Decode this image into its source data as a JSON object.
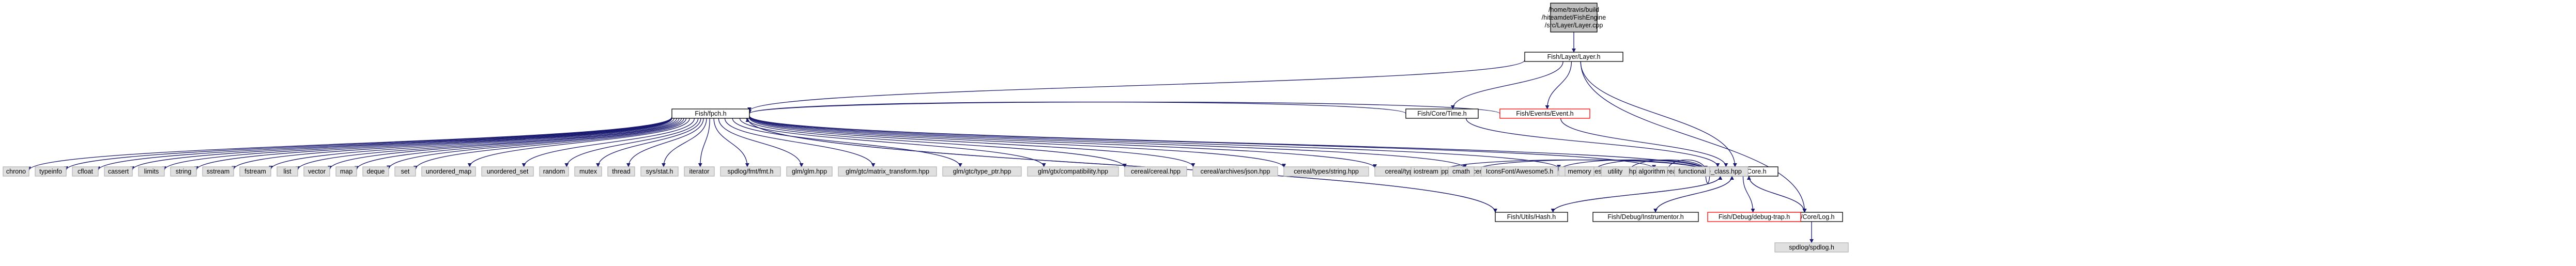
{
  "title": "",
  "colors": {
    "root_fill": "#bfbfbf",
    "node_fill": "#ffffff",
    "external_fill": "#e0e0e0",
    "external_stroke": "#b5b5b5",
    "documented_stroke": "#000000",
    "undocumented_stroke": "#ff0000",
    "edge": "#191970",
    "text": "#000000"
  },
  "nodes": [
    {
      "id": "root",
      "lines": [
        "/home/travis/build",
        "/hiteamdet/FishEngine",
        "/src/Layer/Layer.cpp"
      ],
      "kind": "root"
    },
    {
      "id": "layer_h",
      "lines": [
        "Fish/Layer/Layer.h"
      ],
      "kind": "documented"
    },
    {
      "id": "fishpch",
      "lines": [
        "Fish/fpch.h"
      ],
      "kind": "documented"
    },
    {
      "id": "time_h",
      "lines": [
        "Fish/Core/Time.h"
      ],
      "kind": "documented"
    },
    {
      "id": "event_h",
      "lines": [
        "Fish/Events/Event.h"
      ],
      "kind": "undocumented"
    },
    {
      "id": "core_h",
      "lines": [
        "Fish/Core/Core.h"
      ],
      "kind": "documented"
    },
    {
      "id": "log_h",
      "lines": [
        "Fish/Core/Log.h"
      ],
      "kind": "documented"
    },
    {
      "id": "hash_h",
      "lines": [
        "Fish/Utils/Hash.h"
      ],
      "kind": "documented"
    },
    {
      "id": "instr_h",
      "lines": [
        "Fish/Debug/Instrumentor.h"
      ],
      "kind": "documented"
    },
    {
      "id": "dbgtrap_h",
      "lines": [
        "Fish/Debug/debug-trap.h"
      ],
      "kind": "undocumented"
    },
    {
      "id": "spdlog_h",
      "lines": [
        "spdlog/spdlog.h"
      ],
      "kind": "external"
    },
    {
      "id": "e_chrono",
      "lines": [
        "chrono"
      ],
      "kind": "external"
    },
    {
      "id": "e_typeinfo",
      "lines": [
        "typeinfo"
      ],
      "kind": "external"
    },
    {
      "id": "e_cfloat",
      "lines": [
        "cfloat"
      ],
      "kind": "external"
    },
    {
      "id": "e_cassert",
      "lines": [
        "cassert"
      ],
      "kind": "external"
    },
    {
      "id": "e_limits",
      "lines": [
        "limits"
      ],
      "kind": "external"
    },
    {
      "id": "e_string",
      "lines": [
        "string"
      ],
      "kind": "external"
    },
    {
      "id": "e_sstream",
      "lines": [
        "sstream"
      ],
      "kind": "external"
    },
    {
      "id": "e_fstream",
      "lines": [
        "fstream"
      ],
      "kind": "external"
    },
    {
      "id": "e_list",
      "lines": [
        "list"
      ],
      "kind": "external"
    },
    {
      "id": "e_vector",
      "lines": [
        "vector"
      ],
      "kind": "external"
    },
    {
      "id": "e_map",
      "lines": [
        "map"
      ],
      "kind": "external"
    },
    {
      "id": "e_deque",
      "lines": [
        "deque"
      ],
      "kind": "external"
    },
    {
      "id": "e_set",
      "lines": [
        "set"
      ],
      "kind": "external"
    },
    {
      "id": "e_umap",
      "lines": [
        "unordered_map"
      ],
      "kind": "external"
    },
    {
      "id": "e_uset",
      "lines": [
        "unordered_set"
      ],
      "kind": "external"
    },
    {
      "id": "e_random",
      "lines": [
        "random"
      ],
      "kind": "external"
    },
    {
      "id": "e_mutex",
      "lines": [
        "mutex"
      ],
      "kind": "external"
    },
    {
      "id": "e_thread",
      "lines": [
        "thread"
      ],
      "kind": "external"
    },
    {
      "id": "e_sysstat",
      "lines": [
        "sys/stat.h"
      ],
      "kind": "external"
    },
    {
      "id": "e_iterator",
      "lines": [
        "iterator"
      ],
      "kind": "external"
    },
    {
      "id": "e_fmt",
      "lines": [
        "spdlog/fmt/fmt.h"
      ],
      "kind": "external"
    },
    {
      "id": "e_glm",
      "lines": [
        "glm/glm.hpp"
      ],
      "kind": "external"
    },
    {
      "id": "e_glm_mt",
      "lines": [
        "glm/gtc/matrix_transform.hpp"
      ],
      "kind": "external"
    },
    {
      "id": "e_glm_tp",
      "lines": [
        "glm/gtc/type_ptr.hpp"
      ],
      "kind": "external"
    },
    {
      "id": "e_glm_cp",
      "lines": [
        "glm/gtx/compatibility.hpp"
      ],
      "kind": "external"
    },
    {
      "id": "e_cer",
      "lines": [
        "cereal/cereal.hpp"
      ],
      "kind": "external"
    },
    {
      "id": "e_cer_json",
      "lines": [
        "cereal/archives/json.hpp"
      ],
      "kind": "external"
    },
    {
      "id": "e_cer_str",
      "lines": [
        "cereal/types/string.hpp"
      ],
      "kind": "external"
    },
    {
      "id": "e_cer_util",
      "lines": [
        "cereal/types/utility.hpp"
      ],
      "kind": "external"
    },
    {
      "id": "e_cer_mem",
      "lines": [
        "cereal/types/memory.hpp"
      ],
      "kind": "external"
    },
    {
      "id": "e_cer_cplx",
      "lines": [
        "cereal/types/complex.hpp"
      ],
      "kind": "external"
    },
    {
      "id": "e_cer_base",
      "lines": [
        "cereal/types/base_class.hpp"
      ],
      "kind": "external"
    },
    {
      "id": "e_iostream",
      "lines": [
        "iostream"
      ],
      "kind": "external"
    },
    {
      "id": "e_cmath",
      "lines": [
        "cmath"
      ],
      "kind": "external"
    },
    {
      "id": "e_icons",
      "lines": [
        "IconsFont/Awesome5.h"
      ],
      "kind": "external"
    },
    {
      "id": "e_memory",
      "lines": [
        "memory"
      ],
      "kind": "external"
    },
    {
      "id": "e_utility",
      "lines": [
        "utility"
      ],
      "kind": "external"
    },
    {
      "id": "e_algorithm",
      "lines": [
        "algorithm"
      ],
      "kind": "external"
    },
    {
      "id": "e_functional",
      "lines": [
        "functional"
      ],
      "kind": "external"
    }
  ],
  "edges": [
    [
      "root",
      "layer_h"
    ],
    [
      "layer_h",
      "fishpch"
    ],
    [
      "layer_h",
      "time_h"
    ],
    [
      "layer_h",
      "event_h"
    ],
    [
      "layer_h",
      "core_h"
    ],
    [
      "layer_h",
      "log_h"
    ],
    [
      "time_h",
      "fishpch"
    ],
    [
      "time_h",
      "core_h"
    ],
    [
      "event_h",
      "fishpch"
    ],
    [
      "event_h",
      "core_h"
    ],
    [
      "hash_h",
      "fishpch"
    ],
    [
      "fishpch",
      "e_chrono"
    ],
    [
      "fishpch",
      "e_typeinfo"
    ],
    [
      "fishpch",
      "e_cfloat"
    ],
    [
      "fishpch",
      "e_cassert"
    ],
    [
      "fishpch",
      "e_limits"
    ],
    [
      "fishpch",
      "e_string"
    ],
    [
      "fishpch",
      "e_sstream"
    ],
    [
      "fishpch",
      "e_fstream"
    ],
    [
      "fishpch",
      "e_list"
    ],
    [
      "fishpch",
      "e_vector"
    ],
    [
      "fishpch",
      "e_map"
    ],
    [
      "fishpch",
      "e_deque"
    ],
    [
      "fishpch",
      "e_set"
    ],
    [
      "fishpch",
      "e_umap"
    ],
    [
      "fishpch",
      "e_uset"
    ],
    [
      "fishpch",
      "e_random"
    ],
    [
      "fishpch",
      "e_mutex"
    ],
    [
      "fishpch",
      "e_thread"
    ],
    [
      "fishpch",
      "e_sysstat"
    ],
    [
      "fishpch",
      "e_iterator"
    ],
    [
      "fishpch",
      "e_fmt"
    ],
    [
      "fishpch",
      "e_glm"
    ],
    [
      "fishpch",
      "e_glm_mt"
    ],
    [
      "fishpch",
      "e_glm_tp"
    ],
    [
      "fishpch",
      "e_glm_cp"
    ],
    [
      "fishpch",
      "e_cer"
    ],
    [
      "fishpch",
      "e_cer_json"
    ],
    [
      "fishpch",
      "e_cer_str"
    ],
    [
      "fishpch",
      "e_cer_util"
    ],
    [
      "fishpch",
      "e_cer_mem"
    ],
    [
      "fishpch",
      "e_cer_cplx"
    ],
    [
      "fishpch",
      "e_cer_base"
    ],
    [
      "fishpch",
      "core_h"
    ],
    [
      "fishpch",
      "hash_h"
    ],
    [
      "core_h",
      "e_iostream"
    ],
    [
      "core_h",
      "e_cmath"
    ],
    [
      "core_h",
      "e_icons"
    ],
    [
      "core_h",
      "e_memory"
    ],
    [
      "core_h",
      "e_utility"
    ],
    [
      "core_h",
      "e_algorithm"
    ],
    [
      "core_h",
      "e_functional"
    ],
    [
      "core_h",
      "hash_h"
    ],
    [
      "core_h",
      "instr_h"
    ],
    [
      "core_h",
      "dbgtrap_h"
    ],
    [
      "core_h",
      "log_h"
    ],
    [
      "hash_h",
      "core_h"
    ],
    [
      "instr_h",
      "core_h"
    ],
    [
      "log_h",
      "core_h"
    ],
    [
      "log_h",
      "spdlog_h"
    ]
  ]
}
